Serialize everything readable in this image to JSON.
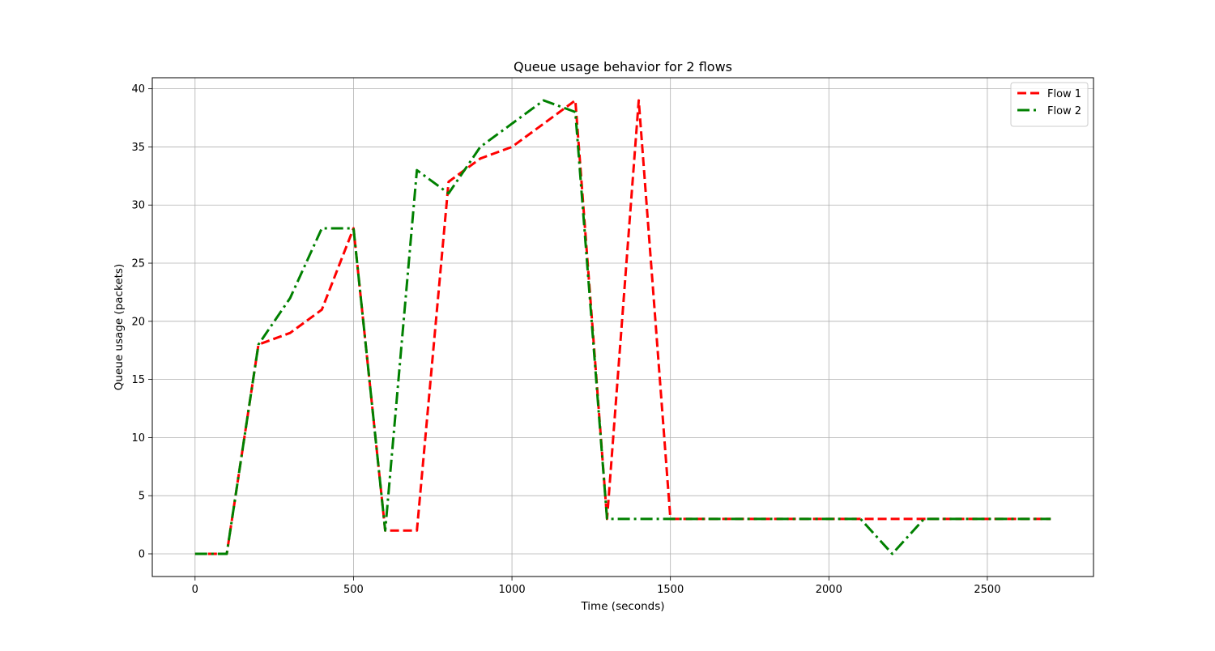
{
  "chart_data": {
    "type": "line",
    "title": "Queue usage behavior for 2 flows",
    "xlabel": "Time (seconds)",
    "ylabel": "Queue usage (packets)",
    "xlim": [
      -135,
      2835
    ],
    "ylim": [
      -1.95,
      40.95
    ],
    "xticks": [
      0,
      500,
      1000,
      1500,
      2000,
      2500
    ],
    "yticks": [
      0,
      5,
      10,
      15,
      20,
      25,
      30,
      35,
      40
    ],
    "grid": true,
    "legend_position": "top-right",
    "series": [
      {
        "name": "Flow 1",
        "color": "#ff0000",
        "linestyle": "dashed",
        "x": [
          0,
          100,
          200,
          300,
          400,
          500,
          600,
          700,
          800,
          900,
          1000,
          1100,
          1200,
          1300,
          1400,
          1500,
          1600,
          1700,
          1800,
          1900,
          2000,
          2100,
          2200,
          2300,
          2400,
          2500,
          2600,
          2700
        ],
        "y": [
          0,
          0,
          18,
          19,
          21,
          28,
          2,
          2,
          32,
          34,
          35,
          37,
          39,
          3,
          39,
          3,
          3,
          3,
          3,
          3,
          3,
          3,
          3,
          3,
          3,
          3,
          3,
          3
        ]
      },
      {
        "name": "Flow 2",
        "color": "#008000",
        "linestyle": "dashdot",
        "x": [
          0,
          100,
          200,
          300,
          400,
          500,
          600,
          700,
          800,
          900,
          1000,
          1100,
          1200,
          1300,
          1400,
          1500,
          1600,
          1700,
          1800,
          1900,
          2000,
          2100,
          2200,
          2300,
          2400,
          2500,
          2600,
          2700
        ],
        "y": [
          0,
          0,
          18,
          22,
          28,
          28,
          2,
          33,
          31,
          35,
          37,
          39,
          38,
          3,
          3,
          3,
          3,
          3,
          3,
          3,
          3,
          3,
          0,
          3,
          3,
          3,
          3,
          3
        ]
      }
    ]
  }
}
